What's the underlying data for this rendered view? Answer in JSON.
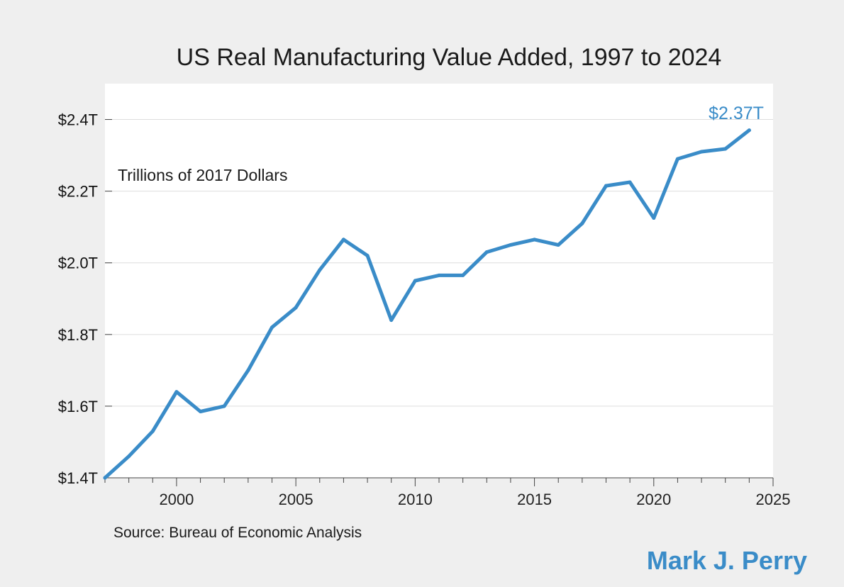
{
  "colors": {
    "line": "#3a8cc8",
    "author": "#3a8cc8",
    "endlabel": "#3a8cc8",
    "background": "#efefef",
    "plot_background": "#ffffff",
    "gridline": "#dddddd",
    "axis": "#444444"
  },
  "source_note": "Source: Bureau of Economic Analysis",
  "author": "Mark J. Perry",
  "chart_data": {
    "type": "line",
    "title": "US Real Manufacturing Value Added, 1997 to 2024",
    "unit_label": "Trillions of 2017 Dollars",
    "end_label": "$2.37T",
    "xlim": [
      1997,
      2025
    ],
    "ylim": [
      1.4,
      2.5
    ],
    "x_ticks": [
      2000,
      2005,
      2010,
      2015,
      2020,
      2025
    ],
    "y_ticks": [
      1.4,
      1.6,
      1.8,
      2.0,
      2.2,
      2.4
    ],
    "y_tick_labels": [
      "$1.4T",
      "$1.6T",
      "$1.8T",
      "$2.0T",
      "$2.2T",
      "$2.4T"
    ],
    "grid": true,
    "series": [
      {
        "x": [
          1997,
          1998,
          1999,
          2000,
          2001,
          2002,
          2003,
          2004,
          2005,
          2006,
          2007,
          2008,
          2009,
          2010,
          2011,
          2012,
          2013,
          2014,
          2015,
          2016,
          2017,
          2018,
          2019,
          2020,
          2021,
          2022,
          2023,
          2024
        ],
        "values": [
          1.4,
          1.46,
          1.53,
          1.64,
          1.585,
          1.6,
          1.7,
          1.82,
          1.875,
          1.98,
          2.065,
          2.02,
          1.84,
          1.95,
          1.965,
          1.965,
          2.03,
          2.05,
          2.065,
          2.05,
          2.11,
          2.215,
          2.225,
          2.125,
          2.29,
          2.31,
          2.318,
          2.37
        ]
      }
    ]
  }
}
